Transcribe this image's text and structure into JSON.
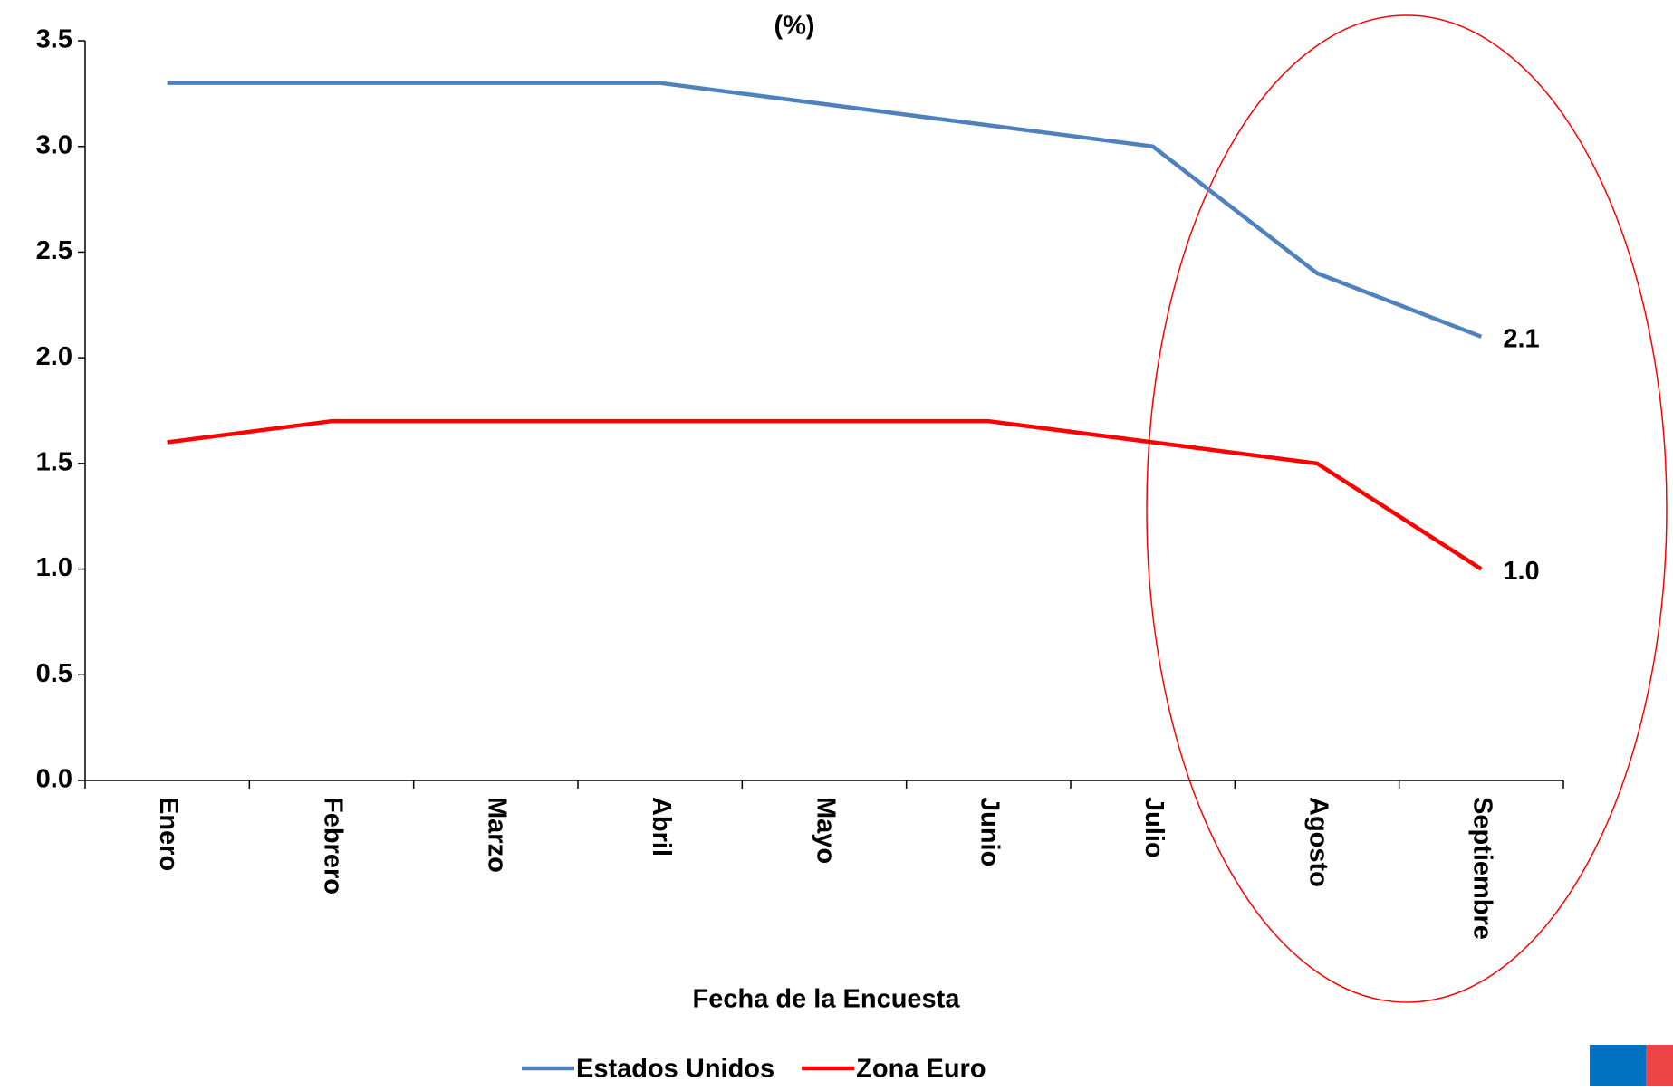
{
  "chart_data": {
    "type": "line",
    "title": "(%)",
    "x_label": "Fecha de la Encuesta",
    "categories": [
      "Enero",
      "Febrero",
      "Marzo",
      "Abril",
      "Mayo",
      "Junio",
      "Julio",
      "Agosto",
      "Septiembre"
    ],
    "series": [
      {
        "name": "Estados Unidos",
        "color": "#4f81bd",
        "values": [
          3.3,
          3.3,
          3.3,
          3.3,
          3.2,
          3.1,
          3.0,
          2.4,
          2.1
        ],
        "value_labels": [
          null,
          null,
          null,
          null,
          null,
          null,
          null,
          null,
          "2.1"
        ]
      },
      {
        "name": "Zona Euro",
        "color": "#ff0000",
        "values": [
          1.6,
          1.7,
          1.7,
          1.7,
          1.7,
          1.7,
          1.6,
          1.5,
          1.0
        ],
        "value_labels": [
          null,
          null,
          null,
          null,
          null,
          null,
          null,
          null,
          "1.0"
        ]
      }
    ],
    "ylim": [
      0,
      3.5
    ],
    "yticks": [
      {
        "value": 0,
        "label": "0.0"
      },
      0.5,
      {
        "value": 1,
        "label": "1.0"
      },
      1.5,
      {
        "value": 2,
        "label": "2.0"
      },
      2.5,
      {
        "value": 3,
        "label": "3.0"
      },
      3.5
    ],
    "grid": false,
    "legend": "bottom"
  }
}
